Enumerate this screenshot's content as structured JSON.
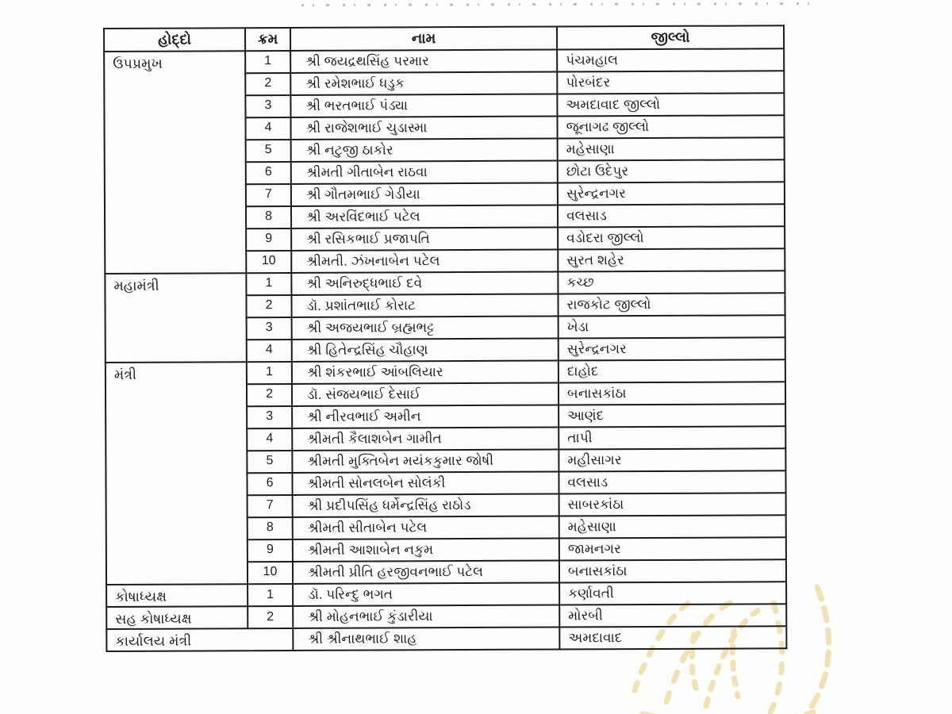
{
  "document": {
    "kind": "scanned-table",
    "language": "Gujarati",
    "line_color": "#1c1c1c",
    "paper_color": "#fdfdfc",
    "watermark_color": "#eed9a0"
  },
  "table": {
    "headers": {
      "position": "હોદ્દો",
      "number": "ક્રમ",
      "name": "નામ",
      "district": "જીલ્લો"
    },
    "sections": [
      {
        "position": "ઉપપ્રમુખ",
        "members": [
          {
            "no": "1",
            "name": "શ્રી જયદ્રથસિંહ પરમાર",
            "district": "પંચમહાલ"
          },
          {
            "no": "2",
            "name": "શ્રી રમેશભાઈ ધડુક",
            "district": "પોરબંદર"
          },
          {
            "no": "3",
            "name": "શ્રી ભરતભાઈ પંડ્યા",
            "district": "અમદાવાદ જીલ્લો"
          },
          {
            "no": "4",
            "name": "શ્રી રાજેશભાઈ ચુડાસ્મા",
            "district": "જૂનાગઢ જીલ્લો"
          },
          {
            "no": "5",
            "name": "શ્રી નટુજી ઠાકોર",
            "district": "મહેસાણા"
          },
          {
            "no": "6",
            "name": "શ્રીમતી ગીતાબેન રાઠવા",
            "district": "છોટા ઉદેપુર"
          },
          {
            "no": "7",
            "name": "શ્રી ગૌતમભાઈ ગેડીયા",
            "district": "સુરેન્દ્રનગર"
          },
          {
            "no": "8",
            "name": "શ્રી અરવિંદભાઈ પટેલ",
            "district": "વલસાડ"
          },
          {
            "no": "9",
            "name": "શ્રી રસિકભાઈ પ્રજાપતિ",
            "district": "વડોદરા જીલ્લો"
          },
          {
            "no": "10",
            "name": "શ્રીમતી. ઝંખનાબેન પટેલ",
            "district": "સુરત શહેર"
          }
        ]
      },
      {
        "position": "મહામંત્રી",
        "members": [
          {
            "no": "1",
            "name": "શ્રી અનિરુદ્ધભાઈ દવે",
            "district": "કચ્છ"
          },
          {
            "no": "2",
            "name": "ડૉ. પ્રશાંતભાઈ કોરાટ",
            "district": "રાજકોટ જીલ્લો"
          },
          {
            "no": "3",
            "name": "શ્રી અજયભાઈ બ્રહ્મભટ્ટ",
            "district": "ખેડા"
          },
          {
            "no": "4",
            "name": "શ્રી હિતેન્દ્રસિંહ ચૌહાણ",
            "district": "સુરેન્દ્રનગર"
          }
        ]
      },
      {
        "position": "મંત્રી",
        "members": [
          {
            "no": "1",
            "name": "શ્રી શંકરભાઈ આંબલિયાર",
            "district": "દાહોદ"
          },
          {
            "no": "2",
            "name": "ડૉ. સંજયભાઈ દેસાઈ",
            "district": "બનાસકાંઠા"
          },
          {
            "no": "3",
            "name": "શ્રી નીરવભાઈ અમીન",
            "district": "આણંદ"
          },
          {
            "no": "4",
            "name": "શ્રીમતી કૈલાશબેન ગામીત",
            "district": "તાપી"
          },
          {
            "no": "5",
            "name": "શ્રીમતી મુક્તિબેન મયંકકુમાર જોષી",
            "district": "મહીસાગર"
          },
          {
            "no": "6",
            "name": "શ્રીમતી સોનલબેન સોલંકી",
            "district": "વલસાડ"
          },
          {
            "no": "7",
            "name": "શ્રી પ્રદીપસિંહ ધર્મેન્દ્રસિંહ રાઠોડ",
            "district": "સાબરકાંઠા"
          },
          {
            "no": "8",
            "name": "શ્રીમતી સીતાબેન પટેલ",
            "district": "મહેસાણા"
          },
          {
            "no": "9",
            "name": "શ્રીમતી આશાબેન નકુમ",
            "district": "જામનગર"
          },
          {
            "no": "10",
            "name": "શ્રીમતી પ્રીતિ હરજીવનભાઈ પટેલ",
            "district": "બનાસકાંઠા"
          }
        ]
      },
      {
        "position": "કોષાધ્યક્ષ",
        "members": [
          {
            "no": "1",
            "name": "ડૉ. પરિન્દુ ભગત",
            "district": "કર્ણાવતી"
          }
        ]
      },
      {
        "position": "સહ કોષાધ્યક્ષ",
        "members": [
          {
            "no": "2",
            "name": "શ્રી મોહનભાઈ કુંડારીયા",
            "district": "મોરબી"
          }
        ]
      },
      {
        "position": "કાર્યાલય મંત્રી",
        "merge_number_cell": true,
        "members": [
          {
            "no": "",
            "name": "શ્રી શ્રીનાથભાઈ શાહ",
            "district": "અમદાવાદ"
          }
        ]
      }
    ]
  }
}
